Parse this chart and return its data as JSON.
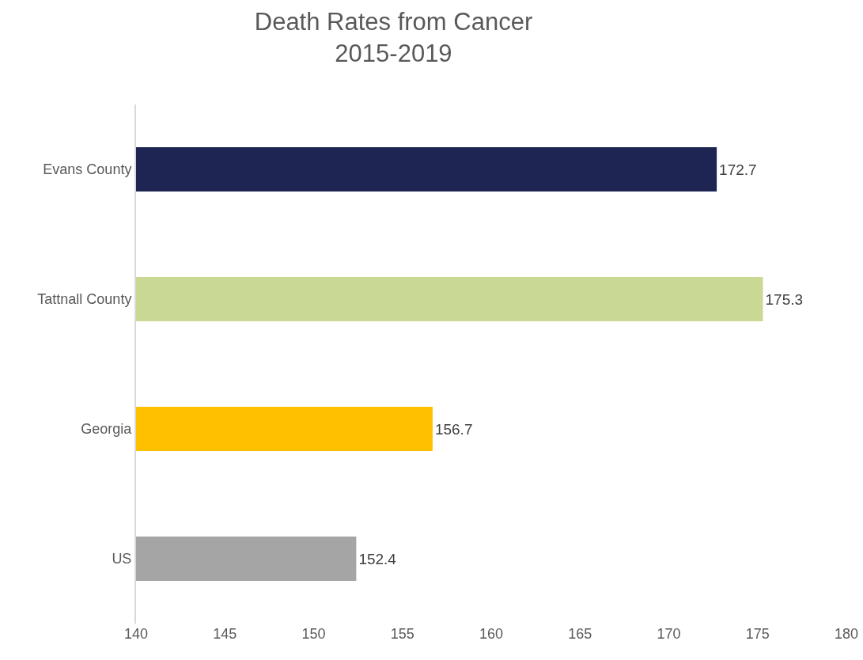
{
  "chart_data": {
    "type": "bar",
    "orientation": "horizontal",
    "title": "Death Rates from Cancer",
    "subtitle": "2015-2019",
    "categories": [
      "Evans County",
      "Tattnall County",
      "Georgia",
      "US"
    ],
    "values": [
      172.7,
      175.3,
      156.7,
      152.4
    ],
    "colors": [
      "#1f2553",
      "#c9d994",
      "#ffc000",
      "#a5a5a5"
    ],
    "xlim": [
      140,
      180
    ],
    "xticks": [
      140,
      145,
      150,
      155,
      160,
      165,
      170,
      175,
      180
    ],
    "grid": false,
    "data_labels": true
  }
}
